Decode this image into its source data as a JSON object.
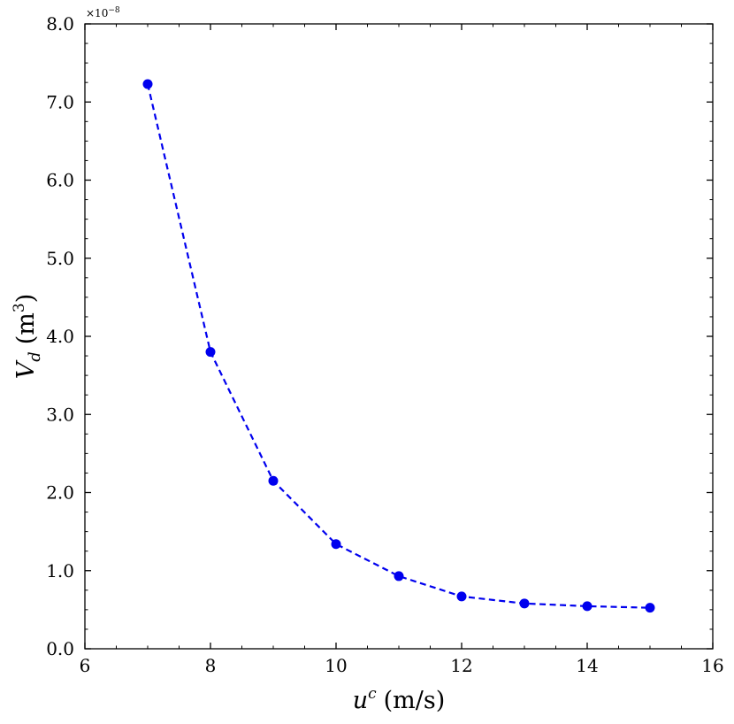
{
  "chart_data": {
    "type": "line",
    "title": "",
    "x": [
      7,
      8,
      9,
      10,
      11,
      12,
      13,
      14,
      15
    ],
    "series": [
      {
        "values": [
          7.23,
          3.8,
          2.15,
          1.34,
          0.93,
          0.67,
          0.58,
          0.545,
          0.525
        ],
        "color": "#0000ee",
        "line_style": "dashed",
        "marker": "circle"
      }
    ],
    "xlabel": {
      "var": "u",
      "sup": "c",
      "unit": "(m/s)"
    },
    "ylabel": {
      "var": "V",
      "sub": "d",
      "unit_open": "(m",
      "unit_sup": "3",
      "unit_close": ")"
    },
    "xlim": [
      6,
      16
    ],
    "ylim": [
      0,
      8
    ],
    "x_ticks": [
      "6",
      "8",
      "10",
      "12",
      "14",
      "16"
    ],
    "y_ticks": [
      "0.0",
      "1.0",
      "2.0",
      "3.0",
      "4.0",
      "5.0",
      "6.0",
      "7.0",
      "8.0"
    ],
    "y_offset": {
      "base": "×10",
      "exp": "−8"
    },
    "grid": false,
    "legend": "none"
  }
}
